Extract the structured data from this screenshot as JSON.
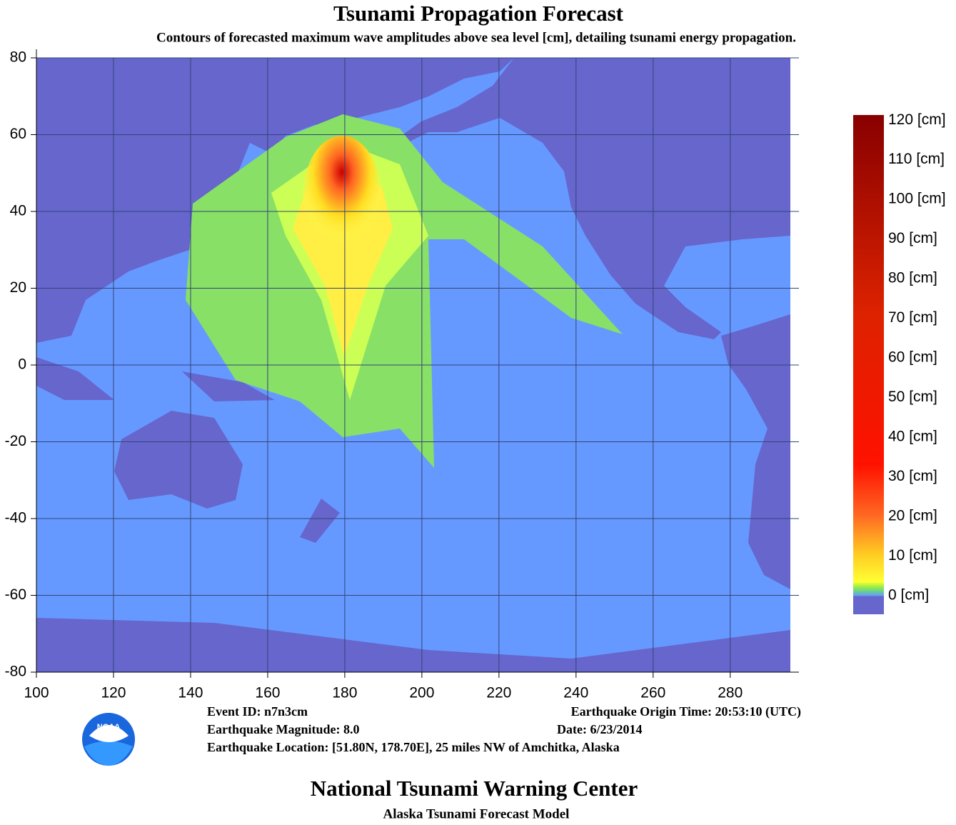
{
  "chart_data": {
    "type": "map",
    "title": "Tsunami Propagation Forecast",
    "subtitle": "Contours of forecasted maximum wave amplitudes above sea level [cm], detailing tsunami energy propagation.",
    "xlim": [
      100,
      295.6
    ],
    "ylim": [
      -80,
      80
    ],
    "xticks": [
      100,
      120,
      140,
      160,
      180,
      200,
      220,
      240,
      260,
      280
    ],
    "yticks": [
      -80,
      -60,
      -40,
      -20,
      0,
      20,
      40,
      60,
      80
    ],
    "grid": true,
    "colorbar": {
      "lim": [
        -4.7,
        121.3
      ],
      "ticks": [
        {
          "value": 0,
          "label": "0 [cm]"
        },
        {
          "value": 10,
          "label": "10 [cm]"
        },
        {
          "value": 20,
          "label": "20 [cm]"
        },
        {
          "value": 30,
          "label": "30 [cm]"
        },
        {
          "value": 40,
          "label": "40 [cm]"
        },
        {
          "value": 50,
          "label": "50 [cm]"
        },
        {
          "value": 60,
          "label": "60 [cm]"
        },
        {
          "value": 70,
          "label": "70 [cm]"
        },
        {
          "value": 80,
          "label": "80 [cm]"
        },
        {
          "value": 90,
          "label": "90 [cm]"
        },
        {
          "value": 100,
          "label": "100 [cm]"
        },
        {
          "value": 110,
          "label": "110 [cm]"
        },
        {
          "value": 120,
          "label": "120 [cm]"
        }
      ]
    },
    "event": {
      "id": "Event ID: n7n3cm",
      "magnitude": "Earthquake Magnitude: 8.0",
      "location": "Earthquake Location: [51.80N, 178.70E], 25 miles NW of Amchitka, Alaska",
      "origin_time": "Earthquake Origin Time: 20:53:10 (UTC)",
      "date": "Date: 6/23/2014"
    },
    "logo": "NOAA",
    "footer_title": "National Tsunami Warning Center",
    "footer_subtitle": "Alaska Tsunami Forecast Model"
  }
}
